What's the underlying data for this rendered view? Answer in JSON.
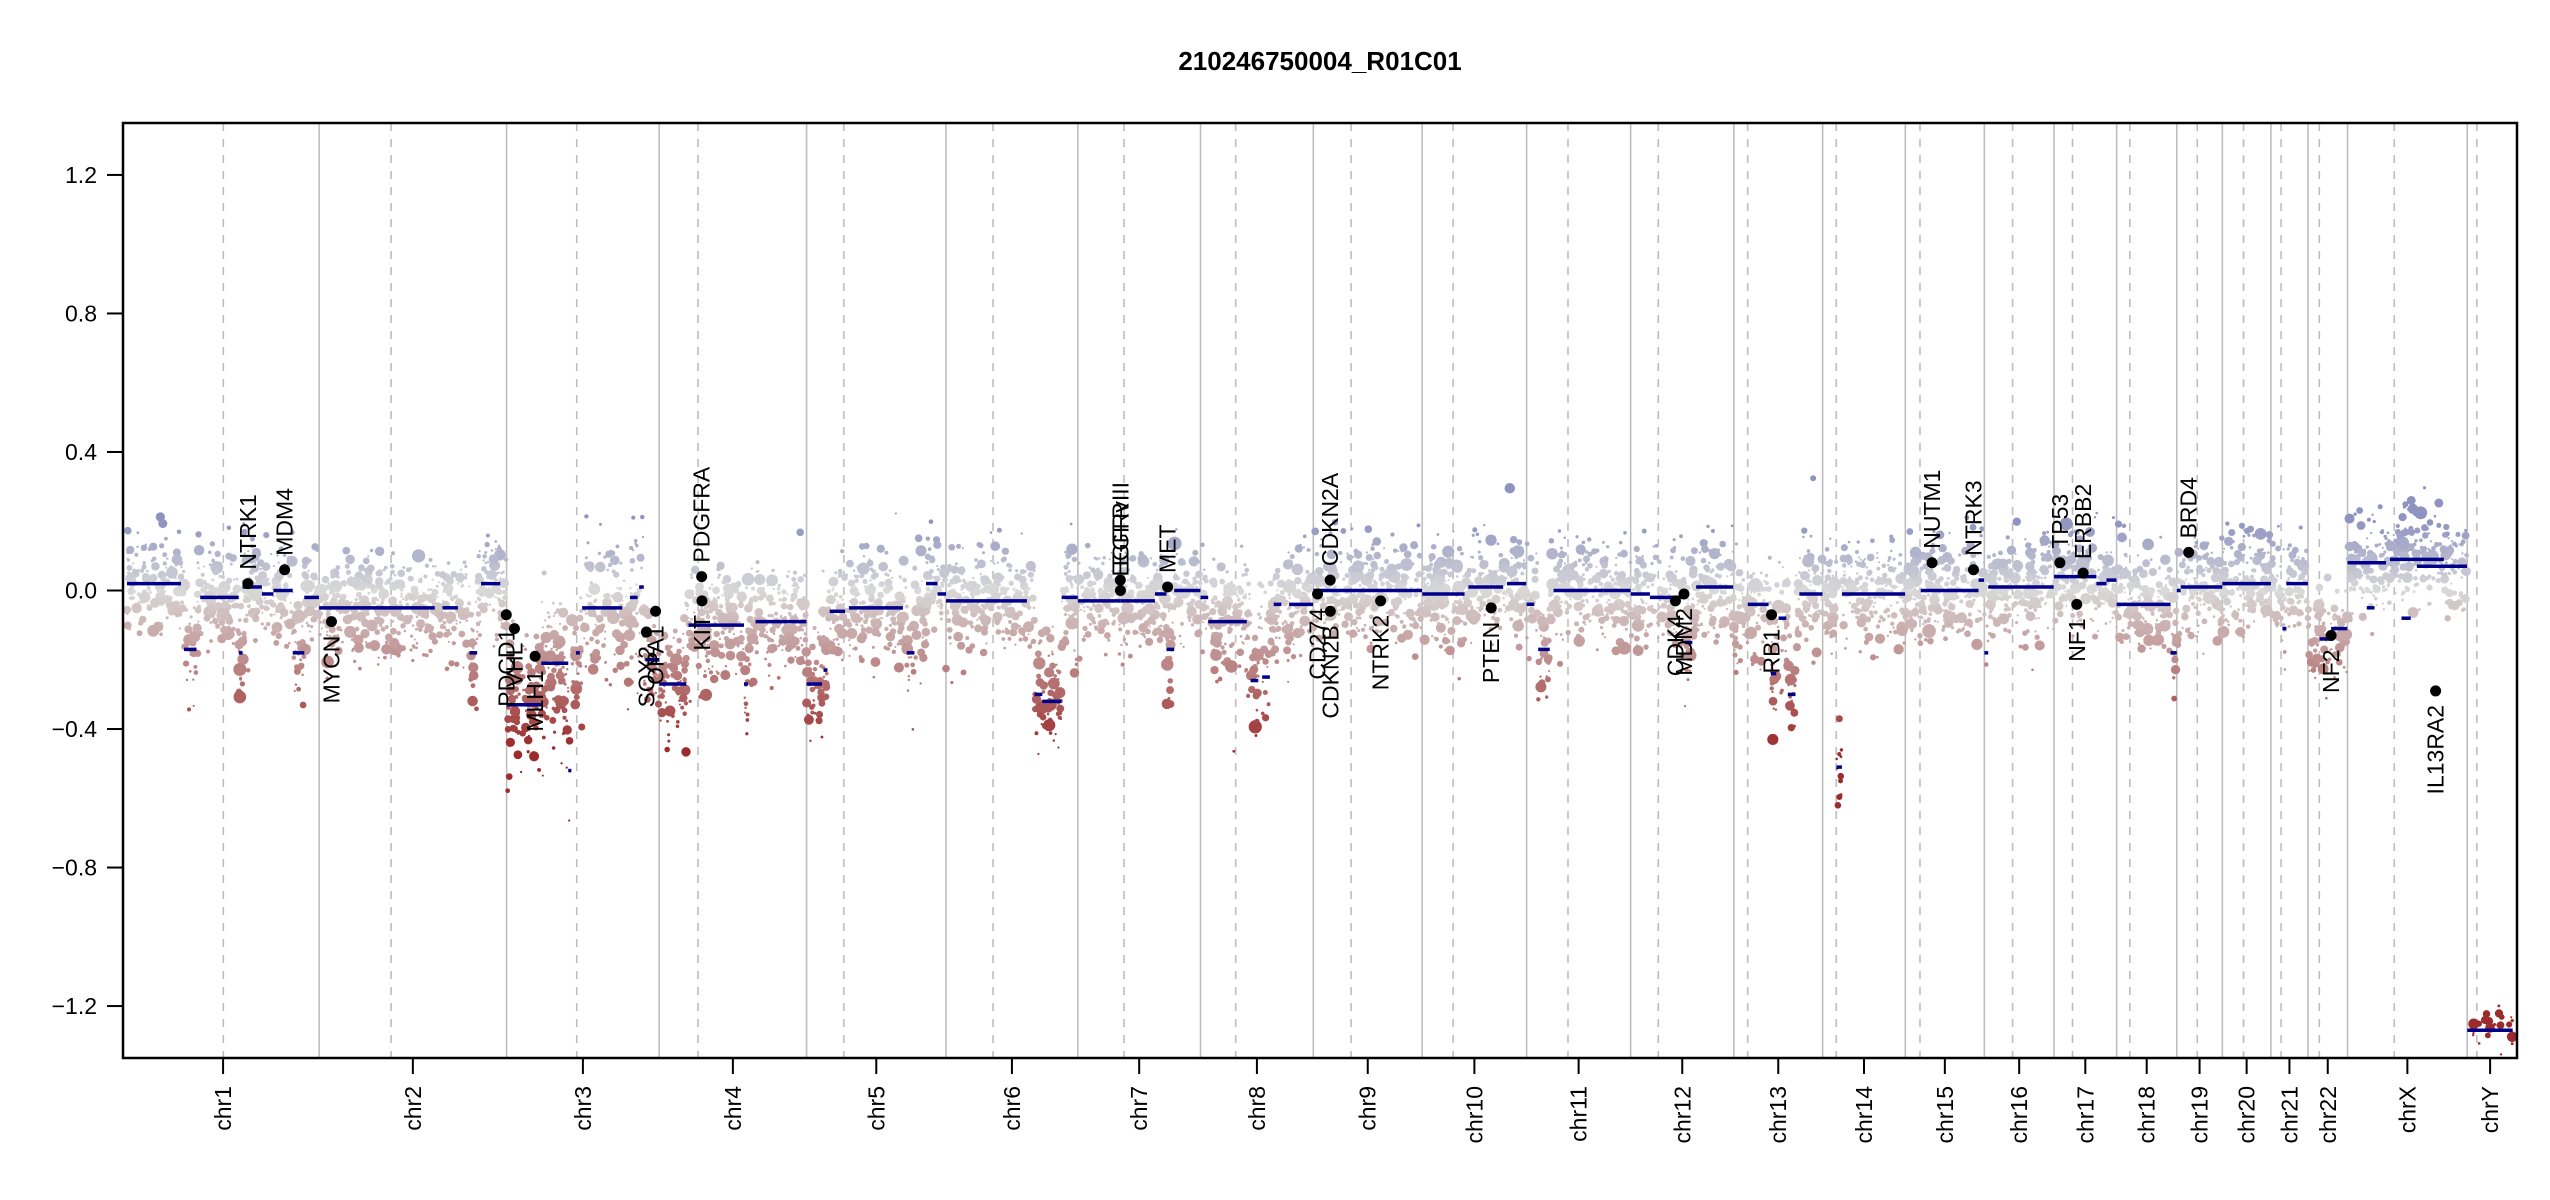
{
  "chart_data": {
    "type": "scatter",
    "title": "210246750004_R01C01",
    "xlabel": "",
    "ylabel": "",
    "ylim": [
      -1.35,
      1.35
    ],
    "y_ticks": [
      1.2,
      0.8,
      0.4,
      0.0,
      -0.4,
      -0.8,
      -1.2
    ],
    "y_tick_labels": [
      "1.2",
      "0.8",
      "0.4",
      "0.0",
      "−0.4",
      "−0.8",
      "−1.2"
    ],
    "grid": false,
    "legend": "none",
    "colors": {
      "gain": "#8f93c0",
      "neutral": "#d9d9d9",
      "loss": "#9c2b2b",
      "segment": "#00008b",
      "gene_marker": "#000000",
      "chrom_boundary": "#bebebe",
      "centromere": "#bebebe"
    },
    "chromosomes": [
      {
        "name": "chr1",
        "length_mb": 249.3,
        "centromere_mb": 125.0
      },
      {
        "name": "chr2",
        "length_mb": 243.2,
        "centromere_mb": 93.3
      },
      {
        "name": "chr3",
        "length_mb": 198.0,
        "centromere_mb": 91.0
      },
      {
        "name": "chr4",
        "length_mb": 191.2,
        "centromere_mb": 50.4
      },
      {
        "name": "chr5",
        "length_mb": 180.9,
        "centromere_mb": 48.4
      },
      {
        "name": "chr6",
        "length_mb": 171.1,
        "centromere_mb": 61.0
      },
      {
        "name": "chr7",
        "length_mb": 159.1,
        "centromere_mb": 59.9
      },
      {
        "name": "chr8",
        "length_mb": 146.4,
        "centromere_mb": 45.6
      },
      {
        "name": "chr9",
        "length_mb": 141.2,
        "centromere_mb": 49.0
      },
      {
        "name": "chr10",
        "length_mb": 135.5,
        "centromere_mb": 40.2
      },
      {
        "name": "chr11",
        "length_mb": 135.0,
        "centromere_mb": 53.7
      },
      {
        "name": "chr12",
        "length_mb": 133.9,
        "centromere_mb": 35.8
      },
      {
        "name": "chr13",
        "length_mb": 115.2,
        "centromere_mb": 17.9
      },
      {
        "name": "chr14",
        "length_mb": 107.3,
        "centromere_mb": 17.6
      },
      {
        "name": "chr15",
        "length_mb": 102.5,
        "centromere_mb": 19.0
      },
      {
        "name": "chr16",
        "length_mb": 90.4,
        "centromere_mb": 36.6
      },
      {
        "name": "chr17",
        "length_mb": 81.2,
        "centromere_mb": 24.0
      },
      {
        "name": "chr18",
        "length_mb": 78.1,
        "centromere_mb": 17.2
      },
      {
        "name": "chr19",
        "length_mb": 59.1,
        "centromere_mb": 26.5
      },
      {
        "name": "chr20",
        "length_mb": 63.0,
        "centromere_mb": 27.5
      },
      {
        "name": "chr21",
        "length_mb": 48.1,
        "centromere_mb": 13.2
      },
      {
        "name": "chr22",
        "length_mb": 51.3,
        "centromere_mb": 14.7
      },
      {
        "name": "chrX",
        "length_mb": 155.3,
        "centromere_mb": 60.6
      },
      {
        "name": "chrY",
        "length_mb": 59.4,
        "centromere_mb": 12.5
      }
    ],
    "segments": [
      {
        "chr": "chr1",
        "start": 0,
        "end": 70,
        "value": 0.02
      },
      {
        "chr": "chr1",
        "start": 74,
        "end": 90,
        "value": -0.17
      },
      {
        "chr": "chr1",
        "start": 95,
        "end": 145,
        "value": -0.02
      },
      {
        "chr": "chr1",
        "start": 145,
        "end": 150,
        "value": -0.18
      },
      {
        "chr": "chr1",
        "start": 150,
        "end": 175,
        "value": 0.01
      },
      {
        "chr": "chr1",
        "start": 175,
        "end": 190,
        "value": -0.01
      },
      {
        "chr": "chr1",
        "start": 190,
        "end": 215,
        "value": 0.0
      },
      {
        "chr": "chr1",
        "start": 215,
        "end": 230,
        "value": -0.18
      },
      {
        "chr": "chr1",
        "start": 230,
        "end": 249,
        "value": -0.02
      },
      {
        "chr": "chr2",
        "start": 0,
        "end": 150,
        "value": -0.05
      },
      {
        "chr": "chr2",
        "start": 160,
        "end": 180,
        "value": -0.05
      },
      {
        "chr": "chr2",
        "start": 195,
        "end": 205,
        "value": -0.18
      },
      {
        "chr": "chr2",
        "start": 210,
        "end": 235,
        "value": 0.02
      },
      {
        "chr": "chr3",
        "start": 0,
        "end": 45,
        "value": -0.33
      },
      {
        "chr": "chr3",
        "start": 45,
        "end": 80,
        "value": -0.21
      },
      {
        "chr": "chr3",
        "start": 80,
        "end": 84,
        "value": -0.52
      },
      {
        "chr": "chr3",
        "start": 90,
        "end": 95,
        "value": -0.18
      },
      {
        "chr": "chr3",
        "start": 98,
        "end": 150,
        "value": -0.05
      },
      {
        "chr": "chr3",
        "start": 160,
        "end": 170,
        "value": -0.02
      },
      {
        "chr": "chr3",
        "start": 172,
        "end": 178,
        "value": 0.01
      },
      {
        "chr": "chr3",
        "start": 180,
        "end": 198,
        "value": -0.2
      },
      {
        "chr": "chr4",
        "start": 0,
        "end": 35,
        "value": -0.27
      },
      {
        "chr": "chr4",
        "start": 38,
        "end": 110,
        "value": -0.1
      },
      {
        "chr": "chr4",
        "start": 110,
        "end": 115,
        "value": -0.27
      },
      {
        "chr": "chr4",
        "start": 125,
        "end": 191,
        "value": -0.09
      },
      {
        "chr": "chr5",
        "start": 0,
        "end": 20,
        "value": -0.27
      },
      {
        "chr": "chr5",
        "start": 22,
        "end": 27,
        "value": -0.23
      },
      {
        "chr": "chr5",
        "start": 30,
        "end": 50,
        "value": -0.06
      },
      {
        "chr": "chr5",
        "start": 55,
        "end": 125,
        "value": -0.05
      },
      {
        "chr": "chr5",
        "start": 130,
        "end": 140,
        "value": -0.18
      },
      {
        "chr": "chr5",
        "start": 155,
        "end": 170,
        "value": 0.02
      },
      {
        "chr": "chr5",
        "start": 170,
        "end": 181,
        "value": -0.01
      },
      {
        "chr": "chr6",
        "start": 0,
        "end": 105,
        "value": -0.03
      },
      {
        "chr": "chr6",
        "start": 115,
        "end": 125,
        "value": -0.3
      },
      {
        "chr": "chr6",
        "start": 125,
        "end": 150,
        "value": -0.32
      },
      {
        "chr": "chr6",
        "start": 150,
        "end": 171,
        "value": -0.02
      },
      {
        "chr": "chr7",
        "start": 0,
        "end": 55,
        "value": -0.03
      },
      {
        "chr": "chr7",
        "start": 55,
        "end": 100,
        "value": -0.03
      },
      {
        "chr": "chr7",
        "start": 100,
        "end": 115,
        "value": -0.01
      },
      {
        "chr": "chr7",
        "start": 115,
        "end": 125,
        "value": -0.17
      },
      {
        "chr": "chr7",
        "start": 125,
        "end": 159,
        "value": 0.0
      },
      {
        "chr": "chr8",
        "start": 0,
        "end": 10,
        "value": -0.02
      },
      {
        "chr": "chr8",
        "start": 10,
        "end": 60,
        "value": -0.09
      },
      {
        "chr": "chr8",
        "start": 65,
        "end": 75,
        "value": -0.26
      },
      {
        "chr": "chr8",
        "start": 80,
        "end": 90,
        "value": -0.25
      },
      {
        "chr": "chr8",
        "start": 95,
        "end": 105,
        "value": -0.04
      },
      {
        "chr": "chr8",
        "start": 115,
        "end": 146,
        "value": -0.04
      },
      {
        "chr": "chr9",
        "start": 0,
        "end": 141,
        "value": 0.0
      },
      {
        "chr": "chr10",
        "start": 0,
        "end": 25,
        "value": -0.01
      },
      {
        "chr": "chr10",
        "start": 25,
        "end": 55,
        "value": -0.01
      },
      {
        "chr": "chr10",
        "start": 60,
        "end": 105,
        "value": 0.01
      },
      {
        "chr": "chr10",
        "start": 110,
        "end": 135,
        "value": 0.02
      },
      {
        "chr": "chr11",
        "start": 0,
        "end": 10,
        "value": -0.04
      },
      {
        "chr": "chr11",
        "start": 15,
        "end": 30,
        "value": -0.17
      },
      {
        "chr": "chr11",
        "start": 35,
        "end": 100,
        "value": 0.0
      },
      {
        "chr": "chr11",
        "start": 100,
        "end": 135,
        "value": 0.0
      },
      {
        "chr": "chr12",
        "start": 0,
        "end": 25,
        "value": -0.01
      },
      {
        "chr": "chr12",
        "start": 25,
        "end": 70,
        "value": -0.02
      },
      {
        "chr": "chr12",
        "start": 70,
        "end": 80,
        "value": -0.15
      },
      {
        "chr": "chr12",
        "start": 85,
        "end": 133,
        "value": 0.01
      },
      {
        "chr": "chr13",
        "start": 18,
        "end": 45,
        "value": -0.04
      },
      {
        "chr": "chr13",
        "start": 48,
        "end": 55,
        "value": -0.24
      },
      {
        "chr": "chr13",
        "start": 58,
        "end": 68,
        "value": -0.08
      },
      {
        "chr": "chr13",
        "start": 70,
        "end": 80,
        "value": -0.3
      },
      {
        "chr": "chr13",
        "start": 85,
        "end": 115,
        "value": -0.01
      },
      {
        "chr": "chr14",
        "start": 18,
        "end": 25,
        "value": -0.51
      },
      {
        "chr": "chr14",
        "start": 25,
        "end": 107,
        "value": -0.01
      },
      {
        "chr": "chr15",
        "start": 20,
        "end": 95,
        "value": 0.0
      },
      {
        "chr": "chr15",
        "start": 95,
        "end": 102,
        "value": 0.03
      },
      {
        "chr": "chr16",
        "start": 0,
        "end": 5,
        "value": -0.18
      },
      {
        "chr": "chr16",
        "start": 5,
        "end": 90,
        "value": 0.01
      },
      {
        "chr": "chr17",
        "start": 0,
        "end": 20,
        "value": 0.04
      },
      {
        "chr": "chr17",
        "start": 20,
        "end": 55,
        "value": 0.04
      },
      {
        "chr": "chr17",
        "start": 55,
        "end": 68,
        "value": 0.02
      },
      {
        "chr": "chr17",
        "start": 68,
        "end": 81,
        "value": 0.03
      },
      {
        "chr": "chr18",
        "start": 0,
        "end": 70,
        "value": -0.04
      },
      {
        "chr": "chr18",
        "start": 70,
        "end": 78,
        "value": -0.18
      },
      {
        "chr": "chr19",
        "start": 0,
        "end": 5,
        "value": 0.0
      },
      {
        "chr": "chr19",
        "start": 5,
        "end": 59,
        "value": 0.01
      },
      {
        "chr": "chr20",
        "start": 0,
        "end": 63,
        "value": 0.02
      },
      {
        "chr": "chr21",
        "start": 15,
        "end": 20,
        "value": -0.11
      },
      {
        "chr": "chr21",
        "start": 20,
        "end": 48,
        "value": 0.02
      },
      {
        "chr": "chr22",
        "start": 15,
        "end": 30,
        "value": -0.14
      },
      {
        "chr": "chr22",
        "start": 30,
        "end": 51,
        "value": -0.11
      },
      {
        "chr": "chrX",
        "start": 0,
        "end": 50,
        "value": 0.08
      },
      {
        "chr": "chrX",
        "start": 25,
        "end": 35,
        "value": -0.05
      },
      {
        "chr": "chrX",
        "start": 55,
        "end": 125,
        "value": 0.09
      },
      {
        "chr": "chrX",
        "start": 70,
        "end": 82,
        "value": -0.08
      },
      {
        "chr": "chrX",
        "start": 90,
        "end": 155,
        "value": 0.07
      },
      {
        "chr": "chrY",
        "start": 0,
        "end": 59,
        "value": -1.27
      }
    ],
    "genes": [
      {
        "name": "NTRK1",
        "chr": "chr1",
        "pos": 156.8,
        "value": 0.02,
        "label_side": "above"
      },
      {
        "name": "MDM4",
        "chr": "chr1",
        "pos": 204.5,
        "value": 0.06,
        "label_side": "above"
      },
      {
        "name": "MYCN",
        "chr": "chr2",
        "pos": 16.0,
        "value": -0.09,
        "label_side": "below"
      },
      {
        "name": "PDCD1",
        "chr": "chr2",
        "pos": 242.8,
        "value": -0.07,
        "label_side": "below"
      },
      {
        "name": "VHL",
        "chr": "chr3",
        "pos": 10.2,
        "value": -0.11,
        "label_side": "below"
      },
      {
        "name": "MLH1",
        "chr": "chr3",
        "pos": 37.0,
        "value": -0.19,
        "label_side": "below"
      },
      {
        "name": "SOX2",
        "chr": "chr3",
        "pos": 181.4,
        "value": -0.12,
        "label_side": "below"
      },
      {
        "name": "OPA1",
        "chr": "chr3",
        "pos": 193.3,
        "value": -0.06,
        "label_side": "below"
      },
      {
        "name": "KIT",
        "chr": "chr4",
        "pos": 55.5,
        "value": -0.03,
        "label_side": "below"
      },
      {
        "name": "PDGFRA",
        "chr": "chr4",
        "pos": 55.1,
        "value": 0.04,
        "label_side": "above"
      },
      {
        "name": "EGFR",
        "chr": "chr7",
        "pos": 55.1,
        "value": 0.03,
        "label_side": "above"
      },
      {
        "name": "EGFRvIII",
        "chr": "chr7",
        "pos": 55.2,
        "value": 0.0,
        "label_side": "above"
      },
      {
        "name": "MET",
        "chr": "chr7",
        "pos": 116.4,
        "value": 0.01,
        "label_side": "above"
      },
      {
        "name": "CD274",
        "chr": "chr9",
        "pos": 5.5,
        "value": -0.01,
        "label_side": "below"
      },
      {
        "name": "CDKN2A",
        "chr": "chr9",
        "pos": 21.9,
        "value": 0.03,
        "label_side": "above"
      },
      {
        "name": "CDKN2B",
        "chr": "chr9",
        "pos": 22.0,
        "value": -0.06,
        "label_side": "below"
      },
      {
        "name": "NTRK2",
        "chr": "chr9",
        "pos": 87.3,
        "value": -0.03,
        "label_side": "below"
      },
      {
        "name": "PTEN",
        "chr": "chr10",
        "pos": 89.6,
        "value": -0.05,
        "label_side": "below"
      },
      {
        "name": "CDK4",
        "chr": "chr12",
        "pos": 58.1,
        "value": -0.03,
        "label_side": "below"
      },
      {
        "name": "MDM2",
        "chr": "chr12",
        "pos": 69.2,
        "value": -0.01,
        "label_side": "below"
      },
      {
        "name": "RB1",
        "chr": "chr13",
        "pos": 48.9,
        "value": -0.07,
        "label_side": "below"
      },
      {
        "name": "NUTM1",
        "chr": "chr15",
        "pos": 34.6,
        "value": 0.08,
        "label_side": "above"
      },
      {
        "name": "NTRK3",
        "chr": "chr15",
        "pos": 88.4,
        "value": 0.06,
        "label_side": "above"
      },
      {
        "name": "TP53",
        "chr": "chr17",
        "pos": 7.6,
        "value": 0.08,
        "label_side": "above"
      },
      {
        "name": "NF1",
        "chr": "chr17",
        "pos": 29.5,
        "value": -0.04,
        "label_side": "below"
      },
      {
        "name": "ERBB2",
        "chr": "chr17",
        "pos": 37.8,
        "value": 0.05,
        "label_side": "above"
      },
      {
        "name": "BRD4",
        "chr": "chr19",
        "pos": 15.4,
        "value": 0.11,
        "label_side": "above"
      },
      {
        "name": "NF2",
        "chr": "chr22",
        "pos": 30.0,
        "value": -0.13,
        "label_side": "below"
      },
      {
        "name": "IL13RA2",
        "chr": "chrX",
        "pos": 114.3,
        "value": -0.29,
        "label_side": "below"
      }
    ],
    "probe_profile": [
      {
        "chr": "chr1",
        "mean": 0.0,
        "spread": 0.12
      },
      {
        "chr": "chr2",
        "mean": -0.03,
        "spread": 0.12
      },
      {
        "chr": "chr3",
        "mean": -0.15,
        "spread": 0.16
      },
      {
        "chr": "chr4",
        "mean": -0.08,
        "spread": 0.13
      },
      {
        "chr": "chr5",
        "mean": -0.05,
        "spread": 0.12
      },
      {
        "chr": "chr6",
        "mean": -0.04,
        "spread": 0.13
      },
      {
        "chr": "chr7",
        "mean": -0.01,
        "spread": 0.12
      },
      {
        "chr": "chr8",
        "mean": -0.07,
        "spread": 0.13
      },
      {
        "chr": "chr9",
        "mean": 0.0,
        "spread": 0.12
      },
      {
        "chr": "chr10",
        "mean": 0.0,
        "spread": 0.12
      },
      {
        "chr": "chr11",
        "mean": -0.01,
        "spread": 0.12
      },
      {
        "chr": "chr12",
        "mean": -0.01,
        "spread": 0.13
      },
      {
        "chr": "chr13",
        "mean": -0.06,
        "spread": 0.13
      },
      {
        "chr": "chr14",
        "mean": -0.02,
        "spread": 0.13
      },
      {
        "chr": "chr15",
        "mean": 0.0,
        "spread": 0.12
      },
      {
        "chr": "chr16",
        "mean": 0.0,
        "spread": 0.12
      },
      {
        "chr": "chr17",
        "mean": 0.03,
        "spread": 0.12
      },
      {
        "chr": "chr18",
        "mean": -0.05,
        "spread": 0.13
      },
      {
        "chr": "chr19",
        "mean": 0.01,
        "spread": 0.12
      },
      {
        "chr": "chr20",
        "mean": 0.02,
        "spread": 0.12
      },
      {
        "chr": "chr21",
        "mean": 0.0,
        "spread": 0.12
      },
      {
        "chr": "chr22",
        "mean": -0.14,
        "spread": 0.12
      },
      {
        "chr": "chrX",
        "mean": 0.06,
        "spread": 0.12
      },
      {
        "chr": "chrY",
        "mean": -1.25,
        "spread": 0.05
      }
    ]
  }
}
